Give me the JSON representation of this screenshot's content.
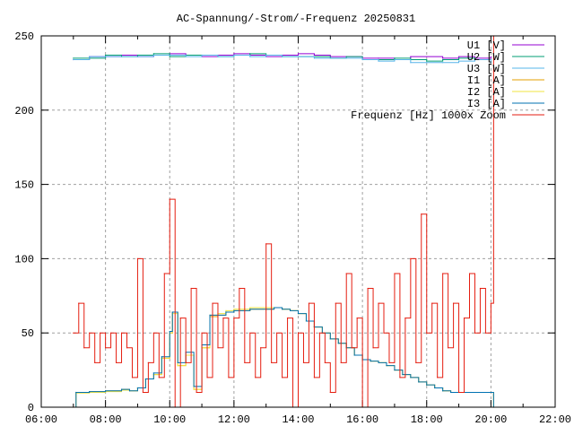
{
  "chart_data": {
    "type": "line",
    "title": "AC-Spannung/-Strom/-Frequenz 20250831",
    "xlabel": "",
    "ylabel": "",
    "xlim": [
      "06:00",
      "22:00"
    ],
    "ylim": [
      0,
      250
    ],
    "x_ticks": [
      "06:00",
      "08:00",
      "10:00",
      "12:00",
      "14:00",
      "16:00",
      "18:00",
      "20:00",
      "22:00"
    ],
    "y_ticks": [
      0,
      50,
      100,
      150,
      200,
      250
    ],
    "grid": true,
    "legend_position": "top-right",
    "series": [
      {
        "name": "U1 [V]",
        "color": "#9400d3",
        "points": [
          [
            "07:00",
            234
          ],
          [
            "07:30",
            236
          ],
          [
            "08:00",
            236
          ],
          [
            "08:30",
            237
          ],
          [
            "09:00",
            236
          ],
          [
            "09:30",
            237
          ],
          [
            "10:00",
            238
          ],
          [
            "10:30",
            237
          ],
          [
            "11:00",
            236
          ],
          [
            "11:30",
            237
          ],
          [
            "12:00",
            238
          ],
          [
            "12:30",
            237
          ],
          [
            "13:00",
            236
          ],
          [
            "13:30",
            237
          ],
          [
            "14:00",
            238
          ],
          [
            "14:30",
            237
          ],
          [
            "15:00",
            236
          ],
          [
            "15:30",
            236
          ],
          [
            "16:00",
            235
          ],
          [
            "16:30",
            235
          ],
          [
            "17:00",
            234
          ],
          [
            "17:30",
            236
          ],
          [
            "18:00",
            236
          ],
          [
            "18:30",
            235
          ],
          [
            "19:00",
            236
          ],
          [
            "19:30",
            235
          ],
          [
            "20:00",
            236
          ]
        ]
      },
      {
        "name": "U2 [W]",
        "color": "#009e73",
        "points": [
          [
            "07:00",
            235
          ],
          [
            "07:30",
            235
          ],
          [
            "08:00",
            237
          ],
          [
            "08:30",
            236
          ],
          [
            "09:00",
            237
          ],
          [
            "09:30",
            238
          ],
          [
            "10:00",
            236
          ],
          [
            "10:30",
            237
          ],
          [
            "11:00",
            237
          ],
          [
            "11:30",
            236
          ],
          [
            "12:00",
            237
          ],
          [
            "12:30",
            238
          ],
          [
            "13:00",
            237
          ],
          [
            "13:30",
            236
          ],
          [
            "14:00",
            236
          ],
          [
            "14:30",
            236
          ],
          [
            "15:00",
            235
          ],
          [
            "15:30",
            236
          ],
          [
            "16:00",
            234
          ],
          [
            "16:30",
            234
          ],
          [
            "17:00",
            235
          ],
          [
            "17:30",
            234
          ],
          [
            "18:00",
            233
          ],
          [
            "18:30",
            234
          ],
          [
            "19:00",
            235
          ],
          [
            "19:30",
            234
          ],
          [
            "20:00",
            234
          ]
        ]
      },
      {
        "name": "U3 [W]",
        "color": "#56b4e9",
        "points": [
          [
            "07:00",
            234
          ],
          [
            "07:30",
            236
          ],
          [
            "08:00",
            236
          ],
          [
            "08:30",
            236
          ],
          [
            "09:00",
            236
          ],
          [
            "09:30",
            237
          ],
          [
            "10:00",
            237
          ],
          [
            "10:30",
            236
          ],
          [
            "11:00",
            237
          ],
          [
            "11:30",
            236
          ],
          [
            "12:00",
            237
          ],
          [
            "12:30",
            236
          ],
          [
            "13:00",
            237
          ],
          [
            "13:30",
            236
          ],
          [
            "14:00",
            236
          ],
          [
            "14:30",
            235
          ],
          [
            "15:00",
            235
          ],
          [
            "15:30",
            235
          ],
          [
            "16:00",
            234
          ],
          [
            "16:30",
            233
          ],
          [
            "17:00",
            234
          ],
          [
            "17:30",
            232
          ],
          [
            "18:00",
            232
          ],
          [
            "18:30",
            232
          ],
          [
            "19:00",
            233
          ],
          [
            "19:30",
            234
          ],
          [
            "20:00",
            232
          ]
        ]
      },
      {
        "name": "I1 [A]",
        "color": "#e69f00",
        "points": [
          [
            "07:00",
            0
          ],
          [
            "07:05",
            10
          ],
          [
            "07:30",
            10.5
          ],
          [
            "08:00",
            11
          ],
          [
            "08:30",
            12
          ],
          [
            "08:45",
            11
          ],
          [
            "09:00",
            13
          ],
          [
            "09:15",
            19
          ],
          [
            "09:30",
            22
          ],
          [
            "09:45",
            33
          ],
          [
            "10:00",
            50
          ],
          [
            "10:05",
            64
          ],
          [
            "10:15",
            28
          ],
          [
            "10:30",
            35
          ],
          [
            "10:45",
            12
          ],
          [
            "11:00",
            40
          ],
          [
            "11:15",
            61
          ],
          [
            "11:30",
            62
          ],
          [
            "11:45",
            64
          ],
          [
            "12:00",
            65
          ],
          [
            "12:30",
            66
          ],
          [
            "13:00",
            66
          ],
          [
            "13:15",
            67
          ],
          [
            "13:30",
            66
          ],
          [
            "13:45",
            65
          ],
          [
            "14:00",
            63
          ],
          [
            "14:15",
            58
          ],
          [
            "14:30",
            54
          ],
          [
            "14:45",
            50
          ],
          [
            "15:00",
            46
          ],
          [
            "15:15",
            43
          ],
          [
            "15:30",
            40
          ],
          [
            "15:45",
            35
          ],
          [
            "16:00",
            32
          ],
          [
            "16:15",
            31
          ],
          [
            "16:30",
            30
          ],
          [
            "16:45",
            28
          ],
          [
            "17:00",
            25
          ],
          [
            "17:15",
            22
          ],
          [
            "17:30",
            20
          ],
          [
            "17:45",
            17
          ],
          [
            "18:00",
            15
          ],
          [
            "18:15",
            13
          ],
          [
            "18:30",
            11
          ],
          [
            "18:45",
            10
          ],
          [
            "20:00",
            10
          ],
          [
            "20:05",
            0
          ]
        ]
      },
      {
        "name": "I2 [A]",
        "color": "#f0e442",
        "points": [
          [
            "07:00",
            0
          ],
          [
            "07:05",
            9.5
          ],
          [
            "07:30",
            10
          ],
          [
            "08:00",
            10.5
          ],
          [
            "08:30",
            11.5
          ],
          [
            "08:45",
            11
          ],
          [
            "09:00",
            13
          ],
          [
            "09:15",
            19
          ],
          [
            "09:30",
            22
          ],
          [
            "09:45",
            33
          ],
          [
            "10:00",
            50
          ],
          [
            "10:05",
            63
          ],
          [
            "10:15",
            28
          ],
          [
            "10:30",
            35
          ],
          [
            "10:45",
            12
          ],
          [
            "11:00",
            40
          ],
          [
            "11:15",
            62
          ],
          [
            "11:30",
            63
          ],
          [
            "11:45",
            65
          ],
          [
            "12:00",
            66
          ],
          [
            "12:30",
            67
          ],
          [
            "13:00",
            67
          ],
          [
            "13:15",
            67
          ],
          [
            "13:30",
            66
          ],
          [
            "13:45",
            65
          ],
          [
            "14:00",
            63
          ],
          [
            "14:15",
            58
          ],
          [
            "14:30",
            54
          ],
          [
            "14:45",
            50
          ],
          [
            "15:00",
            46
          ],
          [
            "15:15",
            43
          ],
          [
            "15:30",
            40
          ],
          [
            "15:45",
            35
          ],
          [
            "16:00",
            32
          ],
          [
            "16:15",
            31
          ],
          [
            "16:30",
            30
          ],
          [
            "16:45",
            28
          ],
          [
            "17:00",
            25
          ],
          [
            "17:15",
            22
          ],
          [
            "17:30",
            20
          ],
          [
            "17:45",
            17
          ],
          [
            "18:00",
            15
          ],
          [
            "18:15",
            13
          ],
          [
            "18:30",
            11
          ],
          [
            "18:45",
            10
          ],
          [
            "20:00",
            10
          ],
          [
            "20:05",
            0
          ]
        ]
      },
      {
        "name": "I3 [A]",
        "color": "#0072b2",
        "points": [
          [
            "07:00",
            0
          ],
          [
            "07:05",
            10
          ],
          [
            "07:30",
            10.5
          ],
          [
            "08:00",
            11
          ],
          [
            "08:30",
            12
          ],
          [
            "08:45",
            11
          ],
          [
            "09:00",
            13
          ],
          [
            "09:15",
            19
          ],
          [
            "09:30",
            23
          ],
          [
            "09:45",
            34
          ],
          [
            "10:00",
            51
          ],
          [
            "10:05",
            64
          ],
          [
            "10:15",
            30
          ],
          [
            "10:30",
            37
          ],
          [
            "10:45",
            14
          ],
          [
            "11:00",
            42
          ],
          [
            "11:15",
            62
          ],
          [
            "11:30",
            62
          ],
          [
            "11:45",
            64
          ],
          [
            "12:00",
            65
          ],
          [
            "12:30",
            66
          ],
          [
            "13:00",
            66
          ],
          [
            "13:15",
            67
          ],
          [
            "13:30",
            66
          ],
          [
            "13:45",
            65
          ],
          [
            "14:00",
            63
          ],
          [
            "14:15",
            58
          ],
          [
            "14:30",
            54
          ],
          [
            "14:45",
            50
          ],
          [
            "15:00",
            46
          ],
          [
            "15:15",
            43
          ],
          [
            "15:30",
            40
          ],
          [
            "15:45",
            35
          ],
          [
            "16:00",
            32
          ],
          [
            "16:15",
            31
          ],
          [
            "16:30",
            30
          ],
          [
            "16:45",
            28
          ],
          [
            "17:00",
            25
          ],
          [
            "17:15",
            22
          ],
          [
            "17:30",
            20
          ],
          [
            "17:45",
            17
          ],
          [
            "18:00",
            15
          ],
          [
            "18:15",
            13
          ],
          [
            "18:30",
            11
          ],
          [
            "18:45",
            10
          ],
          [
            "20:00",
            10
          ],
          [
            "20:05",
            0
          ]
        ]
      },
      {
        "name": "Frequenz [Hz] 1000x Zoom",
        "color": "#e51e10",
        "points": [
          [
            "07:00",
            50
          ],
          [
            "07:10",
            70
          ],
          [
            "07:20",
            40
          ],
          [
            "07:30",
            50
          ],
          [
            "07:40",
            30
          ],
          [
            "07:50",
            50
          ],
          [
            "08:00",
            40
          ],
          [
            "08:10",
            50
          ],
          [
            "08:20",
            30
          ],
          [
            "08:30",
            50
          ],
          [
            "08:40",
            40
          ],
          [
            "08:50",
            20
          ],
          [
            "09:00",
            100
          ],
          [
            "09:10",
            10
          ],
          [
            "09:20",
            30
          ],
          [
            "09:30",
            50
          ],
          [
            "09:40",
            20
          ],
          [
            "09:50",
            90
          ],
          [
            "10:00",
            140
          ],
          [
            "10:10",
            0
          ],
          [
            "10:20",
            60
          ],
          [
            "10:30",
            30
          ],
          [
            "10:40",
            80
          ],
          [
            "10:50",
            10
          ],
          [
            "11:00",
            50
          ],
          [
            "11:10",
            20
          ],
          [
            "11:20",
            70
          ],
          [
            "11:30",
            40
          ],
          [
            "11:40",
            60
          ],
          [
            "11:50",
            20
          ],
          [
            "12:00",
            60
          ],
          [
            "12:10",
            80
          ],
          [
            "12:20",
            30
          ],
          [
            "12:30",
            50
          ],
          [
            "12:40",
            20
          ],
          [
            "12:50",
            40
          ],
          [
            "13:00",
            110
          ],
          [
            "13:10",
            30
          ],
          [
            "13:20",
            50
          ],
          [
            "13:30",
            20
          ],
          [
            "13:40",
            60
          ],
          [
            "13:50",
            0
          ],
          [
            "14:00",
            50
          ],
          [
            "14:10",
            30
          ],
          [
            "14:20",
            70
          ],
          [
            "14:30",
            20
          ],
          [
            "14:40",
            50
          ],
          [
            "14:50",
            30
          ],
          [
            "15:00",
            10
          ],
          [
            "15:10",
            70
          ],
          [
            "15:20",
            30
          ],
          [
            "15:30",
            90
          ],
          [
            "15:40",
            40
          ],
          [
            "15:50",
            60
          ],
          [
            "16:00",
            0
          ],
          [
            "16:10",
            80
          ],
          [
            "16:20",
            40
          ],
          [
            "16:30",
            70
          ],
          [
            "16:40",
            50
          ],
          [
            "16:50",
            30
          ],
          [
            "17:00",
            90
          ],
          [
            "17:10",
            20
          ],
          [
            "17:20",
            60
          ],
          [
            "17:30",
            100
          ],
          [
            "17:40",
            30
          ],
          [
            "17:50",
            130
          ],
          [
            "18:00",
            50
          ],
          [
            "18:10",
            70
          ],
          [
            "18:20",
            20
          ],
          [
            "18:30",
            90
          ],
          [
            "18:40",
            40
          ],
          [
            "18:50",
            70
          ],
          [
            "19:00",
            10
          ],
          [
            "19:10",
            60
          ],
          [
            "19:20",
            90
          ],
          [
            "19:30",
            50
          ],
          [
            "19:40",
            80
          ],
          [
            "19:50",
            50
          ],
          [
            "20:00",
            70
          ],
          [
            "20:05",
            250
          ]
        ]
      }
    ]
  }
}
